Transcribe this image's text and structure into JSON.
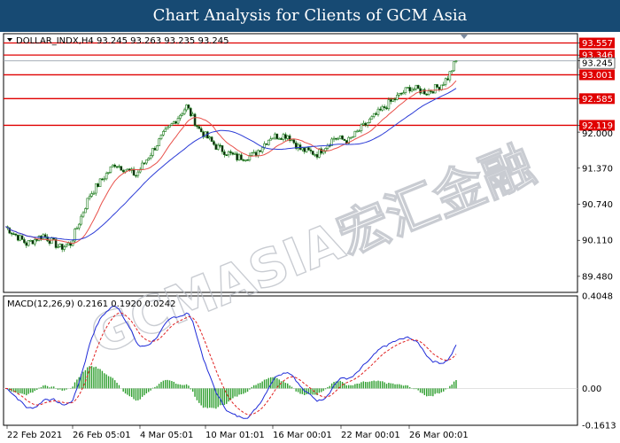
{
  "header": {
    "title": "Chart Analysis for Clients of GCM Asia"
  },
  "watermark": {
    "text": "GCMASIA宏汇金融"
  },
  "chart_data": [
    {
      "type": "candlestick",
      "symbol_info": "DOLLAR_INDX,H4  93.245 93.263 93.235 93.245",
      "ylim": [
        89.2,
        93.72
      ],
      "y_ticks": [
        "93.557",
        "93.346",
        "93.245",
        "93.001",
        "92.585",
        "92.119",
        "92.000",
        "91.370",
        "90.740",
        "90.110",
        "89.480"
      ],
      "x_ticks": [
        "22 Feb 2021",
        "26 Feb 05:01",
        "4 Mar 05:01",
        "10 Mar 01:01",
        "16 Mar 00:01",
        "22 Mar 00:01",
        "26 Mar 00:01"
      ],
      "current_price": 93.245,
      "resistance_levels": [
        93.557,
        93.346,
        93.001,
        92.585,
        92.119
      ],
      "level_color": "#e00000",
      "fast_ma_color": "#e8504a",
      "slow_ma_color": "#2b3bd6",
      "candle_color": "#1a7a1a"
    },
    {
      "type": "macd",
      "label": "MACD(12,26,9) 0.2161 0.1920 0.0242",
      "ylim": [
        -0.1613,
        0.4048
      ],
      "y_ticks": [
        "0.4048",
        "0.00",
        "-0.1613"
      ],
      "macd_color": "#1f2bd8",
      "signal_color": "#e02020",
      "histogram_color": "#2e9e2e"
    }
  ]
}
